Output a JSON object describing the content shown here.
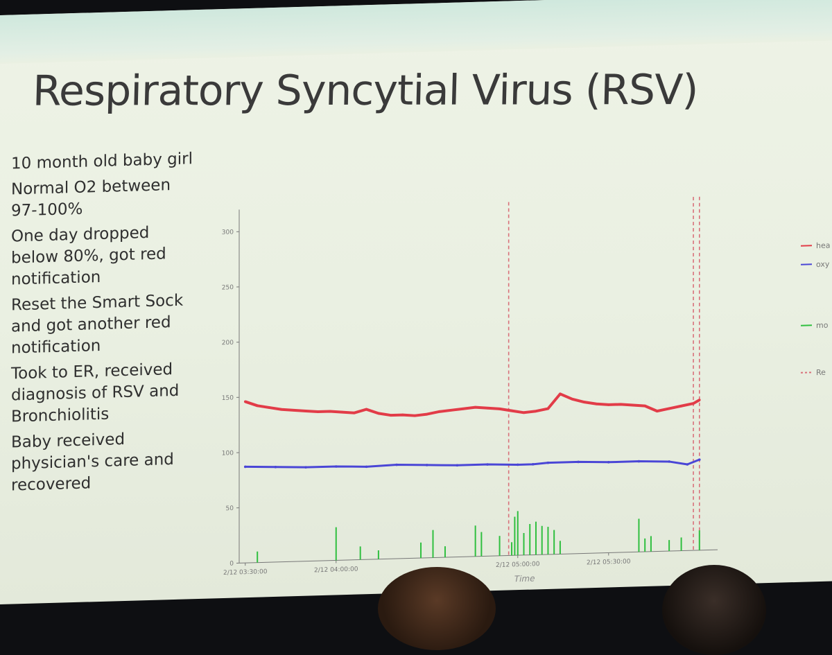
{
  "slide": {
    "title": "Respiratory Syncytial Virus (RSV)",
    "bullets": [
      "10 month old baby girl",
      "Normal O2 between 97-100%",
      "One day dropped below 80%, got red notification",
      "Reset the Smart Sock and got another red notification",
      "Took to ER, received diagnosis of RSV and Bronchiolitis",
      "Baby received physician's care and recovered"
    ]
  },
  "chart_data": {
    "type": "line",
    "xlabel": "Time",
    "ylabel": "",
    "x_tick_labels": [
      "2/12 03:30:00",
      "2/12 04:00:00",
      "2/12 05:00:00",
      "2/12 05:30:00"
    ],
    "x_ticks_min": [
      0,
      30,
      90,
      120
    ],
    "xlim_min": [
      -2,
      156
    ],
    "ylim": [
      0,
      320
    ],
    "y_ticks": [
      0,
      50,
      100,
      150,
      200,
      250,
      300
    ],
    "grid": false,
    "legend_position": "right",
    "legend": [
      {
        "label": "hea",
        "color": "#e23c48",
        "style": "solid"
      },
      {
        "label": "oxy",
        "color": "#4a46d6",
        "style": "solid"
      },
      {
        "label": "mo",
        "color": "#2fbf3f",
        "style": "solid"
      },
      {
        "label": "Re",
        "color": "#d9707a",
        "style": "dashed"
      }
    ],
    "series": [
      {
        "name": "hea",
        "color": "#e23c48",
        "x": [
          0,
          4,
          8,
          12,
          16,
          20,
          24,
          28,
          32,
          36,
          40,
          44,
          48,
          52,
          56,
          60,
          64,
          68,
          72,
          76,
          80,
          84,
          88,
          92,
          96,
          100,
          104,
          108,
          112,
          116,
          120,
          124,
          128,
          132,
          136,
          140,
          144,
          148,
          150
        ],
        "values": [
          146,
          142,
          140,
          138,
          137,
          136,
          135,
          135,
          134,
          133,
          136,
          132,
          130,
          130,
          129,
          130,
          132,
          133,
          134,
          135,
          134,
          133,
          131,
          129,
          130,
          132,
          145,
          140,
          137,
          135,
          134,
          134,
          133,
          132,
          127,
          129,
          131,
          133,
          136
        ]
      },
      {
        "name": "oxy",
        "color": "#4a46d6",
        "x": [
          0,
          10,
          20,
          30,
          40,
          50,
          60,
          70,
          80,
          90,
          95,
          100,
          110,
          120,
          130,
          140,
          146,
          150
        ],
        "values": [
          87,
          86,
          85,
          85,
          84,
          85,
          84,
          83,
          83,
          82,
          82,
          83,
          83,
          82,
          82,
          81,
          78,
          82
        ]
      },
      {
        "name": "mo",
        "color": "#2fbf3f",
        "x": [
          4,
          30,
          38,
          44,
          58,
          62,
          66,
          76,
          78,
          84,
          88,
          89,
          90,
          92,
          94,
          96,
          98,
          100,
          102,
          104,
          130,
          132,
          134,
          140,
          144,
          150
        ],
        "values": [
          10,
          30,
          12,
          8,
          14,
          25,
          10,
          28,
          22,
          18,
          12,
          35,
          40,
          20,
          28,
          30,
          26,
          25,
          22,
          12,
          30,
          12,
          14,
          10,
          12,
          18
        ]
      }
    ],
    "markers_min": [
      87,
      148,
      150
    ],
    "marker_color": "#d9707a"
  }
}
